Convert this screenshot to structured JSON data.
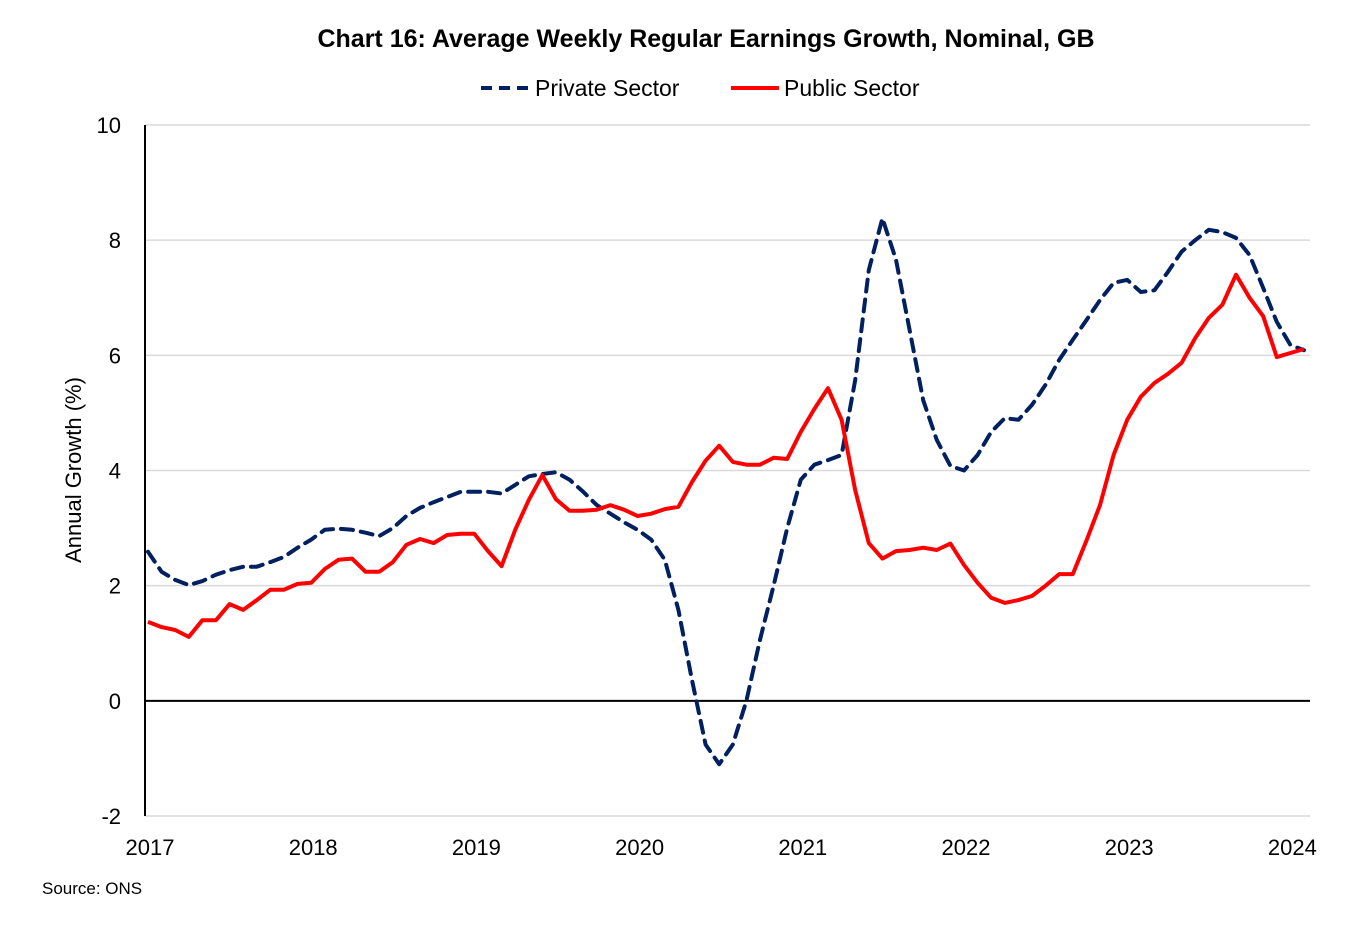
{
  "chart_data": {
    "type": "line",
    "title": "Chart 16: Average Weekly Regular Earnings Growth, Nominal, GB",
    "xlabel": "",
    "ylabel": "Annual Growth (%)",
    "ylim": [
      -2,
      10
    ],
    "yticks": [
      "-2",
      "0",
      "2",
      "4",
      "6",
      "8",
      "10"
    ],
    "xticks": [
      "2017",
      "2018",
      "2019",
      "2020",
      "2021",
      "2022",
      "2023",
      "2024"
    ],
    "grid": true,
    "legend": "top",
    "source": "Source: ONS",
    "x_start": "2017-01",
    "x_step": "monthly",
    "series": [
      {
        "name": "Private Sector",
        "color": "#002060",
        "style": "dashed",
        "values": [
          2.59,
          2.24,
          2.1,
          2.01,
          2.08,
          2.19,
          2.27,
          2.33,
          2.33,
          2.41,
          2.5,
          2.66,
          2.8,
          2.97,
          2.99,
          2.97,
          2.92,
          2.86,
          3.0,
          3.21,
          3.35,
          3.45,
          3.54,
          3.63,
          3.63,
          3.63,
          3.6,
          3.75,
          3.9,
          3.94,
          3.97,
          3.84,
          3.63,
          3.4,
          3.25,
          3.1,
          2.97,
          2.8,
          2.45,
          1.58,
          0.36,
          -0.76,
          -1.1,
          -0.76,
          0.0,
          1.06,
          2.0,
          3.0,
          3.84,
          4.1,
          4.18,
          4.27,
          5.57,
          7.48,
          8.38,
          7.66,
          6.44,
          5.22,
          4.53,
          4.08,
          4.0,
          4.27,
          4.67,
          4.91,
          4.88,
          5.14,
          5.49,
          5.92,
          6.27,
          6.61,
          6.96,
          7.26,
          7.31,
          7.1,
          7.13,
          7.45,
          7.8,
          8.0,
          8.18,
          8.14,
          8.04,
          7.74,
          7.17,
          6.58,
          6.18,
          6.09
        ]
      },
      {
        "name": "Public Sector",
        "color": "#FF0000",
        "style": "solid",
        "values": [
          1.37,
          1.28,
          1.23,
          1.11,
          1.4,
          1.4,
          1.68,
          1.58,
          1.75,
          1.93,
          1.93,
          2.03,
          2.05,
          2.29,
          2.45,
          2.47,
          2.24,
          2.24,
          2.41,
          2.71,
          2.81,
          2.74,
          2.88,
          2.9,
          2.9,
          2.6,
          2.34,
          2.97,
          3.49,
          3.92,
          3.5,
          3.3,
          3.3,
          3.32,
          3.4,
          3.32,
          3.21,
          3.25,
          3.33,
          3.37,
          3.8,
          4.17,
          4.43,
          4.15,
          4.1,
          4.1,
          4.22,
          4.2,
          4.67,
          5.07,
          5.43,
          4.88,
          3.66,
          2.74,
          2.47,
          2.6,
          2.62,
          2.66,
          2.62,
          2.73,
          2.36,
          2.05,
          1.79,
          1.7,
          1.75,
          1.82,
          2.0,
          2.2,
          2.2,
          2.78,
          3.4,
          4.27,
          4.88,
          5.28,
          5.52,
          5.68,
          5.87,
          6.3,
          6.65,
          6.88,
          7.4,
          7.0,
          6.68,
          5.97,
          6.04,
          6.11
        ]
      }
    ]
  }
}
